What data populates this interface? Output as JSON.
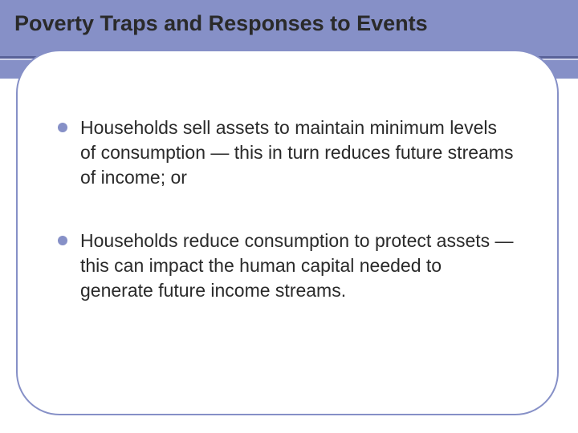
{
  "slide": {
    "title": "Poverty Traps and Responses to Events",
    "bullets": [
      "Households sell assets to maintain minimum levels of consumption — this in turn reduces future streams of income; or",
      "Households reduce consumption to protect assets — this can impact the human capital needed to generate future income streams."
    ]
  },
  "style": {
    "accent_color": "#8690c7",
    "underline_dark": "#5a6399",
    "underline_light": "#d0d4ea",
    "background": "#ffffff",
    "text_color": "#2a2a2a",
    "title_fontsize": 27,
    "body_fontsize": 23,
    "bullet_dot_size": 12,
    "content_border_radius": 54
  }
}
